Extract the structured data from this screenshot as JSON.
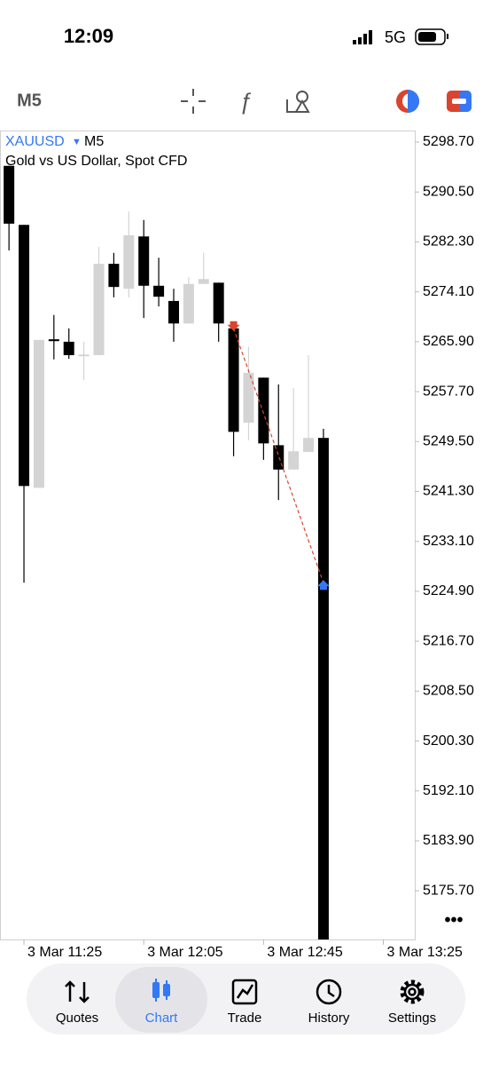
{
  "status_bar": {
    "time": "12:09",
    "network": "5G"
  },
  "toolbar": {
    "timeframe": "M5"
  },
  "chart_data": {
    "type": "candlestick",
    "symbol": "XAUUSD",
    "timeframe": "M5",
    "subtitle": "Gold vs US Dollar, Spot CFD",
    "open": [
      5294.8,
      5285.1,
      5241.9,
      5266.3,
      5265.9,
      5263.7,
      5263.7,
      5278.7,
      5274.6,
      5283.2,
      5275.1,
      5272.6,
      5268.9,
      5275.4,
      5275.6,
      5268.1,
      5252.6,
      5260.0,
      5248.9,
      5244.9,
      5247.8,
      5250.1
    ],
    "high": [
      5294.8,
      5285.1,
      5266.2,
      5270.3,
      5268.1,
      5265.9,
      5281.5,
      5280.5,
      5287.3,
      5285.9,
      5279.7,
      5274.6,
      5276.5,
      5280.5,
      5275.6,
      5269.2,
      5265.1,
      5260.0,
      5258.9,
      5258.3,
      5263.7,
      5251.6
    ],
    "low": [
      5280.9,
      5226.3,
      5241.9,
      5263.0,
      5263.1,
      5259.6,
      5263.7,
      5273.2,
      5273.2,
      5269.8,
      5271.7,
      5265.9,
      5268.9,
      5275.4,
      5265.9,
      5247.1,
      5249.7,
      5246.5,
      5239.9,
      5244.9,
      5247.8,
      5166.0
    ],
    "close": [
      5285.3,
      5242.2,
      5266.2,
      5266.0,
      5263.7,
      5263.8,
      5278.7,
      5274.9,
      5283.4,
      5275.1,
      5273.3,
      5268.9,
      5275.4,
      5276.2,
      5268.9,
      5251.1,
      5260.8,
      5249.2,
      5244.9,
      5247.9,
      5250.1,
      5166.0
    ],
    "up_color": "#d4d4d4",
    "down_color": "#000000",
    "xlim": [
      -0.6,
      27.1
    ],
    "ylim": [
      5167.7,
      5300.6
    ],
    "xticks": [
      {
        "value": 1,
        "label": "3 Mar 11:25"
      },
      {
        "value": 9,
        "label": "3 Mar 12:05"
      },
      {
        "value": 17,
        "label": "3 Mar 12:45"
      },
      {
        "value": 25,
        "label": "3 Mar 13:25"
      }
    ],
    "yticks": [
      {
        "value": 5298.7,
        "label": "5298.70"
      },
      {
        "value": 5290.5,
        "label": "5290.50"
      },
      {
        "value": 5282.3,
        "label": "5282.30"
      },
      {
        "value": 5274.1,
        "label": "5274.10"
      },
      {
        "value": 5265.9,
        "label": "5265.90"
      },
      {
        "value": 5257.7,
        "label": "5257.70"
      },
      {
        "value": 5249.5,
        "label": "5249.50"
      },
      {
        "value": 5241.3,
        "label": "5241.30"
      },
      {
        "value": 5233.1,
        "label": "5233.10"
      },
      {
        "value": 5224.9,
        "label": "5224.90"
      },
      {
        "value": 5216.7,
        "label": "5216.70"
      },
      {
        "value": 5208.5,
        "label": "5208.50"
      },
      {
        "value": 5200.3,
        "label": "5200.30"
      },
      {
        "value": 5192.1,
        "label": "5192.10"
      },
      {
        "value": 5183.9,
        "label": "5183.90"
      },
      {
        "value": 5175.7,
        "label": "5175.70"
      }
    ],
    "trade": {
      "open": {
        "x": 15,
        "price": 5268.1,
        "color": "#d9442f"
      },
      "close": {
        "x": 21,
        "price": 5226.3,
        "color": "#3478f6"
      }
    }
  },
  "tab_bar": {
    "tabs": [
      "Quotes",
      "Chart",
      "Trade",
      "History",
      "Settings"
    ],
    "active": 1
  }
}
